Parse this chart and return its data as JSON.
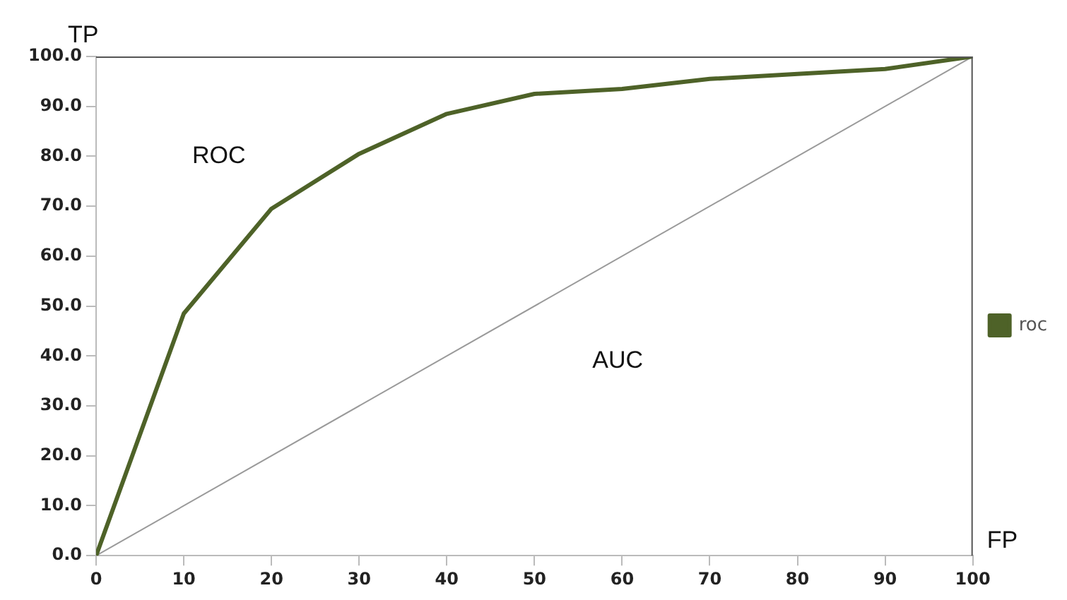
{
  "chart_data": {
    "type": "line",
    "xlabel": "FP",
    "ylabel": "TP",
    "x": [
      0,
      10,
      20,
      30,
      40,
      50,
      60,
      70,
      80,
      90,
      100
    ],
    "series": [
      {
        "name": "roc",
        "color": "#4e6228",
        "values": [
          0,
          48.5,
          69.5,
          80.5,
          88.5,
          92.5,
          93.5,
          95.5,
          96.5,
          97.5,
          100
        ]
      },
      {
        "color": "#9a9a9a",
        "x": [
          0,
          100
        ],
        "values": [
          0,
          100
        ]
      }
    ],
    "xlim": [
      0,
      100
    ],
    "xticks": [
      0,
      10,
      20,
      30,
      40,
      50,
      60,
      70,
      80,
      90,
      100
    ],
    "ylim": [
      0,
      100
    ],
    "yticks": [
      {
        "value": 0,
        "label": "0.0"
      },
      {
        "value": 10,
        "label": "10.0"
      },
      {
        "value": 20,
        "label": "20.0"
      },
      {
        "value": 30,
        "label": "30.0"
      },
      {
        "value": 40,
        "label": "40.0"
      },
      {
        "value": 50,
        "label": "50.0"
      },
      {
        "value": 60,
        "label": "60.0"
      },
      {
        "value": 70,
        "label": "70.0"
      },
      {
        "value": 80,
        "label": "80.0"
      },
      {
        "value": 90,
        "label": "90.0"
      },
      {
        "value": 100,
        "label": "100.0"
      }
    ],
    "annotations": [
      "ROC",
      "AUC"
    ],
    "grid": false,
    "legend": "right",
    "marker": "none",
    "line_style": "solid"
  }
}
